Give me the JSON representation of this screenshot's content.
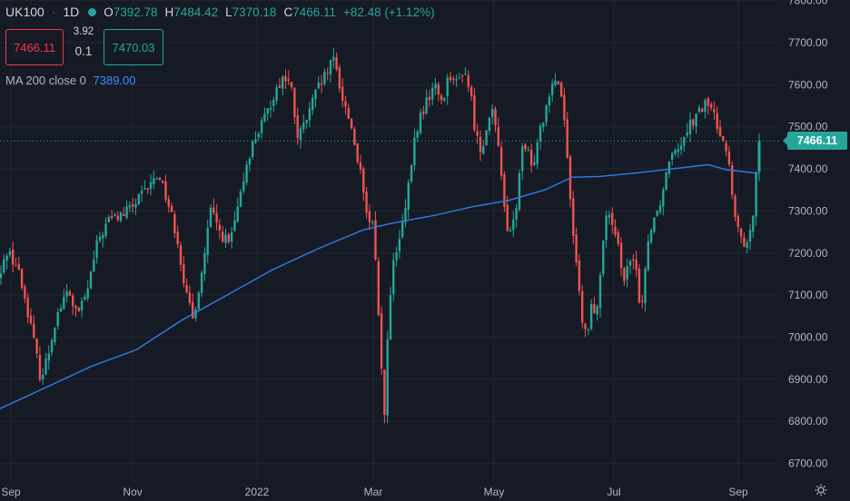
{
  "header": {
    "symbol": "UK100",
    "interval": "1D",
    "open_label": "O",
    "open": "7392.78",
    "high_label": "H",
    "high": "7484.42",
    "low_label": "L",
    "low": "7370.18",
    "close_label": "C",
    "close": "7466.11",
    "change": "+82.48 (+1.12%)"
  },
  "trade": {
    "sell_price": "7466.11",
    "spread_top": "3.92",
    "spread_bottom": "0.1",
    "buy_price": "7470.03"
  },
  "indicator": {
    "label": "MA 200 close 0",
    "value": "7389.00"
  },
  "last_price_tag": "7466.11",
  "settings_icon": "gear-icon",
  "colors": {
    "background": "#161a25",
    "up": "#26a69a",
    "down": "#ef5350",
    "ma": "#2f7fe4",
    "grid": "#232632",
    "text": "#b2b5be"
  },
  "chart_data": {
    "type": "candlestick",
    "interval": "1D",
    "y_ticks": [
      "7800.00",
      "7700.00",
      "7600.00",
      "7500.00",
      "7400.00",
      "7300.00",
      "7200.00",
      "7100.00",
      "7000.00",
      "6900.00",
      "6800.00",
      "6700.00"
    ],
    "x_ticks": [
      "Sep",
      "Nov",
      "2022",
      "Mar",
      "May",
      "Jul",
      "Sep"
    ],
    "ylim": [
      6680,
      7810
    ],
    "last_price": 7466.11,
    "ma_200_last": 7389.0,
    "price_path": [
      [
        0,
        7140
      ],
      [
        8,
        7210
      ],
      [
        20,
        7160
      ],
      [
        32,
        7050
      ],
      [
        45,
        6900
      ],
      [
        52,
        6950
      ],
      [
        62,
        7050
      ],
      [
        75,
        7110
      ],
      [
        85,
        7050
      ],
      [
        95,
        7100
      ],
      [
        108,
        7230
      ],
      [
        120,
        7280
      ],
      [
        135,
        7290
      ],
      [
        150,
        7320
      ],
      [
        165,
        7360
      ],
      [
        175,
        7390
      ],
      [
        185,
        7320
      ],
      [
        195,
        7240
      ],
      [
        205,
        7100
      ],
      [
        212,
        7040
      ],
      [
        222,
        7150
      ],
      [
        232,
        7300
      ],
      [
        242,
        7250
      ],
      [
        252,
        7220
      ],
      [
        262,
        7300
      ],
      [
        272,
        7420
      ],
      [
        282,
        7480
      ],
      [
        292,
        7520
      ],
      [
        302,
        7580
      ],
      [
        312,
        7620
      ],
      [
        320,
        7600
      ],
      [
        328,
        7470
      ],
      [
        338,
        7520
      ],
      [
        348,
        7580
      ],
      [
        358,
        7620
      ],
      [
        368,
        7660
      ],
      [
        378,
        7560
      ],
      [
        386,
        7510
      ],
      [
        396,
        7400
      ],
      [
        404,
        7280
      ],
      [
        412,
        7260
      ],
      [
        418,
        7000
      ],
      [
        423,
        6810
      ],
      [
        428,
        7050
      ],
      [
        433,
        7170
      ],
      [
        440,
        7230
      ],
      [
        448,
        7320
      ],
      [
        455,
        7450
      ],
      [
        462,
        7520
      ],
      [
        470,
        7560
      ],
      [
        478,
        7600
      ],
      [
        487,
        7560
      ],
      [
        495,
        7630
      ],
      [
        503,
        7600
      ],
      [
        511,
        7640
      ],
      [
        518,
        7580
      ],
      [
        524,
        7480
      ],
      [
        530,
        7440
      ],
      [
        536,
        7510
      ],
      [
        542,
        7530
      ],
      [
        548,
        7470
      ],
      [
        554,
        7360
      ],
      [
        558,
        7240
      ],
      [
        563,
        7250
      ],
      [
        568,
        7300
      ],
      [
        574,
        7440
      ],
      [
        580,
        7450
      ],
      [
        586,
        7390
      ],
      [
        592,
        7480
      ],
      [
        598,
        7520
      ],
      [
        604,
        7580
      ],
      [
        610,
        7620
      ],
      [
        616,
        7600
      ],
      [
        622,
        7520
      ],
      [
        628,
        7320
      ],
      [
        634,
        7200
      ],
      [
        640,
        7040
      ],
      [
        646,
        7000
      ],
      [
        652,
        7080
      ],
      [
        658,
        7060
      ],
      [
        664,
        7240
      ],
      [
        670,
        7300
      ],
      [
        676,
        7240
      ],
      [
        682,
        7200
      ],
      [
        688,
        7140
      ],
      [
        694,
        7180
      ],
      [
        700,
        7160
      ],
      [
        706,
        7060
      ],
      [
        712,
        7200
      ],
      [
        718,
        7280
      ],
      [
        724,
        7300
      ],
      [
        730,
        7350
      ],
      [
        736,
        7420
      ],
      [
        742,
        7460
      ],
      [
        748,
        7450
      ],
      [
        754,
        7490
      ],
      [
        760,
        7510
      ],
      [
        766,
        7520
      ],
      [
        772,
        7540
      ],
      [
        778,
        7560
      ],
      [
        784,
        7540
      ],
      [
        790,
        7500
      ],
      [
        796,
        7480
      ],
      [
        802,
        7420
      ],
      [
        807,
        7320
      ],
      [
        812,
        7250
      ],
      [
        818,
        7230
      ],
      [
        823,
        7210
      ],
      [
        828,
        7260
      ],
      [
        832,
        7392.78
      ],
      [
        836,
        7466.11
      ]
    ]
  }
}
